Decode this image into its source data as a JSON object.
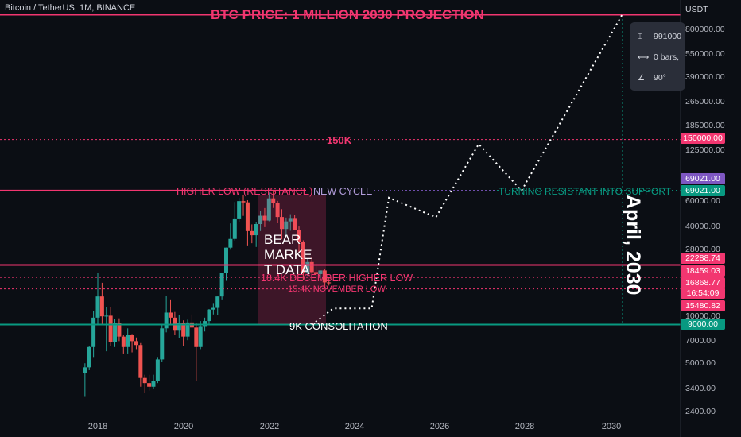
{
  "header": {
    "symbol_title": "Bitcoin / TetherUS, 1M, BINANCE"
  },
  "price_axis": {
    "currency": "USDT",
    "ticks": [
      "800000.00",
      "550000.00",
      "390000.00",
      "265000.00",
      "185000.00",
      "125000.00",
      "60000.00",
      "40000.00",
      "28000.00",
      "10000.00",
      "7000.00",
      "5000.00",
      "3400.00",
      "2400.00"
    ]
  },
  "price_tags": [
    {
      "text": "150000.00",
      "color": "#f23670"
    },
    {
      "text": "69021.00",
      "color": "#7e57c2"
    },
    {
      "text": "69021.00",
      "color": "#089981"
    },
    {
      "text": "22288.74",
      "color": "#f23670"
    },
    {
      "text": "18459.03",
      "color": "#f23670"
    },
    {
      "text": "16868.77",
      "color": "#f23670"
    },
    {
      "text": "16:54:09",
      "color": "#f23670"
    },
    {
      "text": "15480.82",
      "color": "#f23670"
    },
    {
      "text": "9000.00",
      "color": "#089981"
    }
  ],
  "time_axis": {
    "labels": [
      "2018",
      "2020",
      "2022",
      "2024",
      "2026",
      "2028",
      "2030"
    ]
  },
  "annotations": {
    "projection_title": "BTC PRICE: 1 MILLION 2030 PROJECTION",
    "label_150k": "150K",
    "higher_low": "HIGHER LOW (RESISTANCE)",
    "new_cycle": "NEW CYCLE",
    "turning_resistant": "TURNING RESISTANT INTO SUPPORT",
    "bear_market": "BEAR\nMARKE\nT DATA",
    "higher_low_18k": "18.4K DECEMBER HIGHER LOW",
    "nov_low": "15.4K NOVEMBER LOW",
    "consolidation": "9K CONSOLITATION",
    "april_2030": "April, 2030"
  },
  "measure_tooltip": {
    "price_range": "991000",
    "bars": "0 bars,",
    "angle": "90°"
  },
  "colors": {
    "background": "#0b0e14",
    "pink": "#f23670",
    "teal": "#089981",
    "purple": "#7e57c2",
    "candle_up": "#26a69a",
    "candle_down": "#ef5350"
  },
  "chart_data": {
    "type": "candlestick",
    "x_axis_ticks": [
      "2018",
      "2020",
      "2022",
      "2024",
      "2026",
      "2028",
      "2030"
    ],
    "y_scale": "log",
    "ylim": [
      2000,
      1100000
    ],
    "horizontal_levels": [
      {
        "label": "BTC PRICE: 1 MILLION 2030 PROJECTION",
        "value": 1000000
      },
      {
        "label": "150K",
        "value": 150000
      },
      {
        "label": "HIGHER LOW (RESISTANCE)",
        "value": 69021
      },
      {
        "label": "TURNING RESISTANT INTO SUPPORT",
        "value": 69021
      },
      {
        "value": 22288.74
      },
      {
        "label": "18.4K DECEMBER HIGHER LOW",
        "value": 18459.03
      },
      {
        "label": "15.4K NOVEMBER LOW",
        "value": 15480.82
      },
      {
        "label": "9K CONSOLITATION",
        "value": 9000
      }
    ],
    "projection_path": [
      {
        "x": 2023.0,
        "y": 9000
      },
      {
        "x": 2023.5,
        "y": 11500
      },
      {
        "x": 2024.4,
        "y": 11500
      },
      {
        "x": 2024.8,
        "y": 62000
      },
      {
        "x": 2025.9,
        "y": 46000
      },
      {
        "x": 2026.9,
        "y": 140000
      },
      {
        "x": 2027.9,
        "y": 69000
      },
      {
        "x": 2030.25,
        "y": 1000000
      }
    ],
    "candles": [
      {
        "x": 2017.7,
        "o": 4300,
        "h": 5000,
        "l": 3000,
        "c": 4700
      },
      {
        "x": 2017.8,
        "o": 4700,
        "h": 6500,
        "l": 4500,
        "c": 6400
      },
      {
        "x": 2017.9,
        "o": 6400,
        "h": 11000,
        "l": 5500,
        "c": 10000
      },
      {
        "x": 2018.0,
        "o": 10000,
        "h": 19800,
        "l": 9000,
        "c": 13800
      },
      {
        "x": 2018.1,
        "o": 13800,
        "h": 17000,
        "l": 9000,
        "c": 10200
      },
      {
        "x": 2018.2,
        "o": 10200,
        "h": 11800,
        "l": 6000,
        "c": 10300
      },
      {
        "x": 2018.3,
        "o": 10300,
        "h": 11700,
        "l": 6500,
        "c": 6900
      },
      {
        "x": 2018.4,
        "o": 6900,
        "h": 9800,
        "l": 6400,
        "c": 9200
      },
      {
        "x": 2018.5,
        "o": 9200,
        "h": 9900,
        "l": 7000,
        "c": 7500
      },
      {
        "x": 2018.6,
        "o": 7500,
        "h": 7700,
        "l": 5800,
        "c": 6400
      },
      {
        "x": 2018.7,
        "o": 6400,
        "h": 8500,
        "l": 5800,
        "c": 7700
      },
      {
        "x": 2018.8,
        "o": 7700,
        "h": 7800,
        "l": 5900,
        "c": 7000
      },
      {
        "x": 2018.9,
        "o": 7000,
        "h": 7400,
        "l": 6200,
        "c": 6600
      },
      {
        "x": 2019.0,
        "o": 6600,
        "h": 6800,
        "l": 3500,
        "c": 4000
      },
      {
        "x": 2019.1,
        "o": 4000,
        "h": 4200,
        "l": 3200,
        "c": 3700
      },
      {
        "x": 2019.2,
        "o": 3700,
        "h": 4200,
        "l": 3300,
        "c": 3500
      },
      {
        "x": 2019.3,
        "o": 3500,
        "h": 4200,
        "l": 3400,
        "c": 3800
      },
      {
        "x": 2019.4,
        "o": 3800,
        "h": 5500,
        "l": 3700,
        "c": 5300
      },
      {
        "x": 2019.5,
        "o": 5300,
        "h": 9000,
        "l": 5100,
        "c": 8500
      },
      {
        "x": 2019.6,
        "o": 8500,
        "h": 13900,
        "l": 8000,
        "c": 10800
      },
      {
        "x": 2019.7,
        "o": 10800,
        "h": 13200,
        "l": 9100,
        "c": 10000
      },
      {
        "x": 2019.8,
        "o": 10000,
        "h": 10900,
        "l": 7700,
        "c": 8300
      },
      {
        "x": 2019.9,
        "o": 8300,
        "h": 10400,
        "l": 7300,
        "c": 9200
      },
      {
        "x": 2020.0,
        "o": 9200,
        "h": 9600,
        "l": 6500,
        "c": 7500
      },
      {
        "x": 2020.1,
        "o": 7500,
        "h": 9700,
        "l": 7100,
        "c": 9300
      },
      {
        "x": 2020.2,
        "o": 9300,
        "h": 10500,
        "l": 8600,
        "c": 8600
      },
      {
        "x": 2020.3,
        "o": 8600,
        "h": 9200,
        "l": 3800,
        "c": 6400
      },
      {
        "x": 2020.4,
        "o": 6400,
        "h": 9500,
        "l": 6200,
        "c": 8800
      },
      {
        "x": 2020.5,
        "o": 8800,
        "h": 10000,
        "l": 8100,
        "c": 9500
      },
      {
        "x": 2020.6,
        "o": 9500,
        "h": 11400,
        "l": 9000,
        "c": 11300
      },
      {
        "x": 2020.7,
        "o": 11300,
        "h": 12500,
        "l": 10500,
        "c": 11600
      },
      {
        "x": 2020.8,
        "o": 11600,
        "h": 13800,
        "l": 10400,
        "c": 13800
      },
      {
        "x": 2020.9,
        "o": 13800,
        "h": 19800,
        "l": 13200,
        "c": 19700
      },
      {
        "x": 2021.0,
        "o": 19700,
        "h": 29000,
        "l": 17500,
        "c": 29000
      },
      {
        "x": 2021.1,
        "o": 29000,
        "h": 41900,
        "l": 28100,
        "c": 33100
      },
      {
        "x": 2021.2,
        "o": 33100,
        "h": 58000,
        "l": 32300,
        "c": 45200
      },
      {
        "x": 2021.3,
        "o": 45200,
        "h": 61700,
        "l": 43000,
        "c": 58800
      },
      {
        "x": 2021.4,
        "o": 58800,
        "h": 64800,
        "l": 47000,
        "c": 57700
      },
      {
        "x": 2021.5,
        "o": 57700,
        "h": 59600,
        "l": 30000,
        "c": 37300
      },
      {
        "x": 2021.6,
        "o": 37300,
        "h": 41300,
        "l": 31000,
        "c": 35000
      },
      {
        "x": 2021.7,
        "o": 35000,
        "h": 42500,
        "l": 29300,
        "c": 41500
      },
      {
        "x": 2021.8,
        "o": 41500,
        "h": 50500,
        "l": 37300,
        "c": 47100
      },
      {
        "x": 2021.9,
        "o": 47100,
        "h": 52900,
        "l": 39600,
        "c": 43800
      },
      {
        "x": 2022.0,
        "o": 43800,
        "h": 67000,
        "l": 43300,
        "c": 61300
      },
      {
        "x": 2022.1,
        "o": 61300,
        "h": 69000,
        "l": 53000,
        "c": 57000
      },
      {
        "x": 2022.2,
        "o": 57000,
        "h": 59000,
        "l": 42000,
        "c": 46200
      },
      {
        "x": 2022.3,
        "o": 46200,
        "h": 52000,
        "l": 32900,
        "c": 38500
      },
      {
        "x": 2022.4,
        "o": 38500,
        "h": 45800,
        "l": 34300,
        "c": 43200
      },
      {
        "x": 2022.5,
        "o": 43200,
        "h": 48200,
        "l": 37500,
        "c": 45500
      },
      {
        "x": 2022.6,
        "o": 45500,
        "h": 47400,
        "l": 37700,
        "c": 37700
      },
      {
        "x": 2022.7,
        "o": 37700,
        "h": 40000,
        "l": 26700,
        "c": 31800
      },
      {
        "x": 2022.8,
        "o": 31800,
        "h": 32400,
        "l": 17600,
        "c": 19900
      },
      {
        "x": 2022.9,
        "o": 19900,
        "h": 24700,
        "l": 18900,
        "c": 23300
      },
      {
        "x": 2023.0,
        "o": 23300,
        "h": 25200,
        "l": 19500,
        "c": 20000
      },
      {
        "x": 2023.1,
        "o": 20000,
        "h": 22800,
        "l": 18100,
        "c": 19400
      },
      {
        "x": 2023.2,
        "o": 19400,
        "h": 20500,
        "l": 18200,
        "c": 20500
      },
      {
        "x": 2023.3,
        "o": 20500,
        "h": 21100,
        "l": 15500,
        "c": 17100
      },
      {
        "x": 2023.4,
        "o": 17100,
        "h": 18400,
        "l": 16300,
        "c": 16868
      }
    ]
  }
}
